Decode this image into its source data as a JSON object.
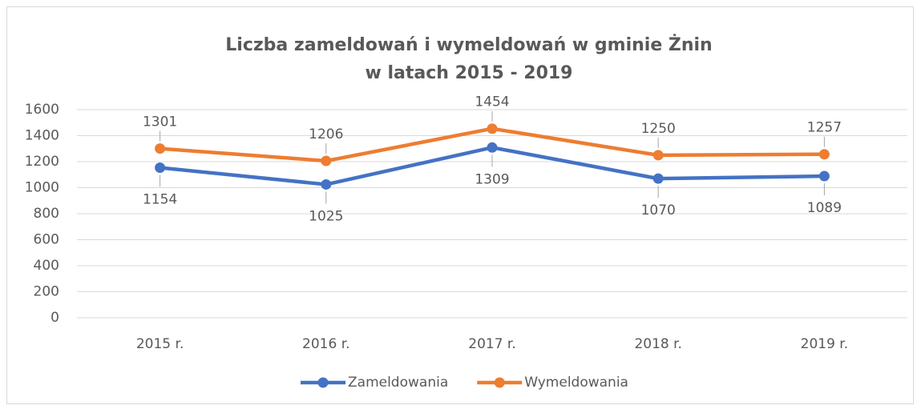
{
  "chart_data": {
    "type": "line",
    "title": [
      "Liczba zameldowań i wymeldowań w gminie Żnin",
      "w latach 2015 - 2019"
    ],
    "categories": [
      "2015 r.",
      "2016 r.",
      "2017 r.",
      "2018 r.",
      "2019 r."
    ],
    "series": [
      {
        "name": "Zameldowania",
        "color": "#4472c4",
        "values": [
          1154,
          1025,
          1309,
          1070,
          1089
        ]
      },
      {
        "name": "Wymeldowania",
        "color": "#ed7d31",
        "values": [
          1301,
          1206,
          1454,
          1250,
          1257
        ]
      }
    ],
    "ylim": [
      0,
      1600
    ],
    "yticks": [
      0,
      200,
      400,
      600,
      800,
      1000,
      1200,
      1400,
      1600
    ],
    "grid": true,
    "legend": "bottom"
  }
}
